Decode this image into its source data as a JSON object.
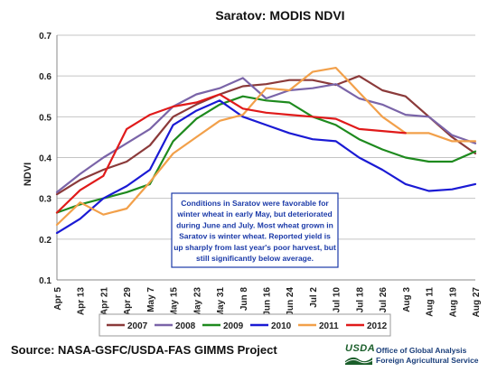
{
  "chart_data": {
    "type": "line",
    "title": "Saratov:  MODIS NDVI",
    "ylabel": "NDVI",
    "xlabel": "",
    "ylim": [
      0.1,
      0.7
    ],
    "yticks": [
      "0.1",
      "0.2",
      "0.3",
      "0.4",
      "0.5",
      "0.6",
      "0.7"
    ],
    "grid": true,
    "legend": "bottom",
    "categories": [
      "Apr 5",
      "Apr 13",
      "Apr 21",
      "Apr 29",
      "May 7",
      "May 15",
      "May 23",
      "May 31",
      "Jun 8",
      "Jun 16",
      "Jun 24",
      "Jul 2",
      "Jul 10",
      "Jul 18",
      "Jul 26",
      "Aug 3",
      "Aug 11",
      "Aug 19",
      "Aug 27"
    ],
    "series": [
      {
        "name": "2007",
        "color": "#8b3a3a",
        "values": [
          0.31,
          0.345,
          0.37,
          0.39,
          0.43,
          0.5,
          0.53,
          0.555,
          0.575,
          0.58,
          0.59,
          0.59,
          0.578,
          0.6,
          0.565,
          0.55,
          0.5,
          0.45,
          0.41
        ]
      },
      {
        "name": "2008",
        "color": "#7a64a8",
        "values": [
          0.315,
          0.36,
          0.4,
          0.435,
          0.47,
          0.525,
          0.555,
          0.57,
          0.595,
          0.545,
          0.565,
          0.57,
          0.58,
          0.545,
          0.53,
          0.505,
          0.5,
          0.455,
          0.435
        ]
      },
      {
        "name": "2009",
        "color": "#1e8a1e",
        "values": [
          0.265,
          0.285,
          0.3,
          0.315,
          0.335,
          0.44,
          0.495,
          0.53,
          0.55,
          0.54,
          0.535,
          0.5,
          0.48,
          0.445,
          0.42,
          0.4,
          0.39,
          0.39,
          0.415
        ]
      },
      {
        "name": "2010",
        "color": "#1a1ad4",
        "values": [
          0.215,
          0.25,
          0.3,
          0.33,
          0.37,
          0.48,
          0.515,
          0.54,
          0.5,
          0.48,
          0.46,
          0.445,
          0.44,
          0.4,
          0.37,
          0.335,
          0.318,
          0.322,
          0.335
        ]
      },
      {
        "name": "2011",
        "color": "#f2a04a",
        "values": [
          0.235,
          0.29,
          0.26,
          0.275,
          0.34,
          0.41,
          0.45,
          0.49,
          0.505,
          0.57,
          0.565,
          0.61,
          0.62,
          0.56,
          0.5,
          0.46,
          0.46,
          0.44,
          0.44
        ]
      },
      {
        "name": "2012",
        "color": "#e01a1a",
        "values": [
          0.265,
          0.32,
          0.355,
          0.47,
          0.505,
          0.525,
          0.535,
          0.555,
          0.52,
          0.51,
          0.505,
          0.5,
          0.495,
          0.47,
          0.465,
          0.46,
          null,
          null,
          null
        ]
      }
    ],
    "annotation": [
      "Conditions in Saratov were favorable for",
      "winter wheat in early May, but deteriorated",
      "during June and July.  Most wheat grown in",
      "Saratov is winter wheat. Reported yield is",
      "up sharply from last year's poor harvest, but",
      "still significantly below average."
    ]
  },
  "footer": {
    "source": "Source:  NASA-GSFC/USDA-FAS GIMMS Project",
    "logo_usda": "USDA",
    "logo_line1": "Office of Global Analysis",
    "logo_line2": "Foreign Agricultural Service"
  }
}
